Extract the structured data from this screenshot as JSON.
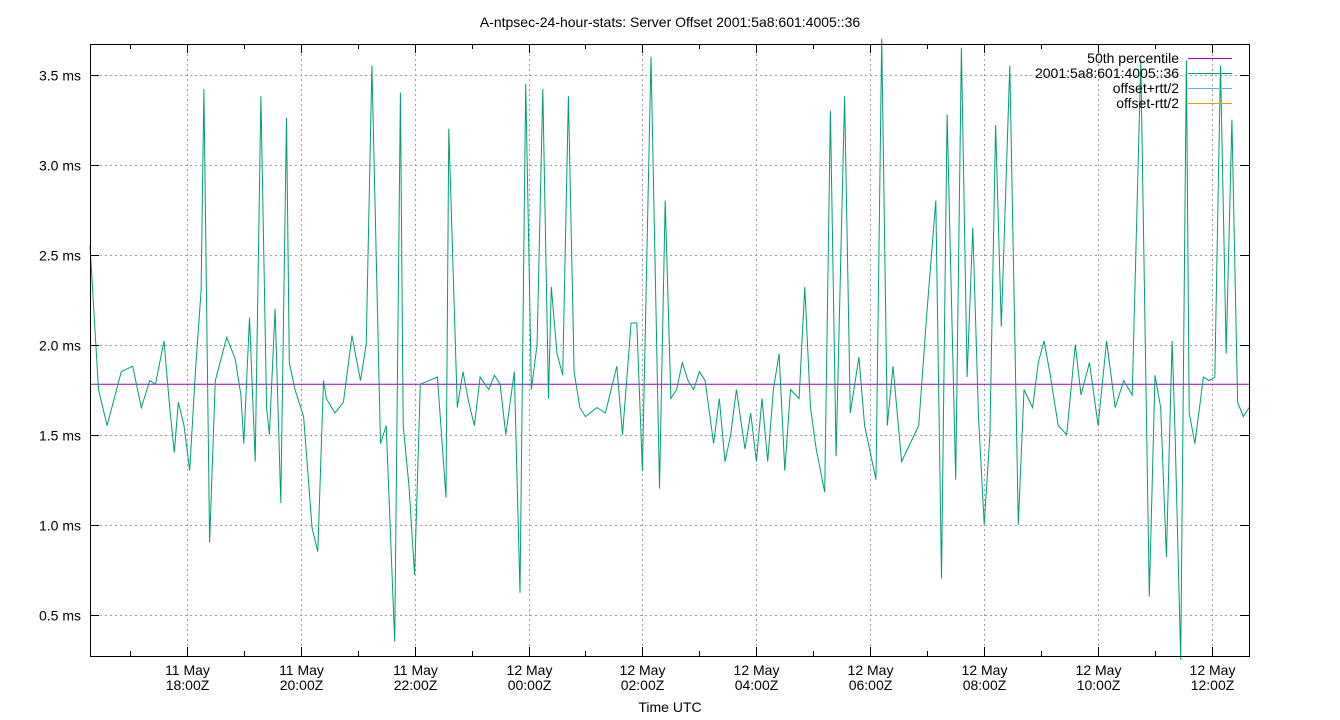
{
  "chart_data": {
    "type": "line",
    "title": "A-ntpsec-24-hour-stats: Server Offset 2001:5a8:601:4005::36",
    "xlabel": "Time UTC",
    "ylabel": "",
    "x_range_hours": [
      -7.7,
      12.65
    ],
    "x_ticks": [
      {
        "h": -6,
        "l1": "11 May",
        "l2": "18:00Z"
      },
      {
        "h": -4,
        "l1": "11 May",
        "l2": "20:00Z"
      },
      {
        "h": -2,
        "l1": "11 May",
        "l2": "22:00Z"
      },
      {
        "h": 0,
        "l1": "12 May",
        "l2": "00:00Z"
      },
      {
        "h": 2,
        "l1": "12 May",
        "l2": "02:00Z"
      },
      {
        "h": 4,
        "l1": "12 May",
        "l2": "04:00Z"
      },
      {
        "h": 6,
        "l1": "12 May",
        "l2": "06:00Z"
      },
      {
        "h": 8,
        "l1": "12 May",
        "l2": "08:00Z"
      },
      {
        "h": 10,
        "l1": "12 May",
        "l2": "10:00Z"
      },
      {
        "h": 12,
        "l1": "12 May",
        "l2": "12:00Z"
      }
    ],
    "y_range": [
      0.27,
      3.67
    ],
    "y_ticks": [
      {
        "v": 0.5,
        "label": "0.5 ms"
      },
      {
        "v": 1.0,
        "label": "1.0 ms"
      },
      {
        "v": 1.5,
        "label": "1.5 ms"
      },
      {
        "v": 2.0,
        "label": "2.0 ms"
      },
      {
        "v": 2.5,
        "label": "2.5 ms"
      },
      {
        "v": 3.0,
        "label": "3.0 ms"
      },
      {
        "v": 3.5,
        "label": "3.5 ms"
      }
    ],
    "grid": true,
    "legend_position": "top-right",
    "series": [
      {
        "name": "50th percentile",
        "color": "#9400d3",
        "x": [
          -7.7,
          12.65
        ],
        "y": [
          1.78,
          1.78
        ]
      },
      {
        "name": "2001:5a8:601:4005::36",
        "color": "#009e73",
        "x": [
          -7.7,
          -7.55,
          -7.4,
          -7.15,
          -6.95,
          -6.8,
          -6.65,
          -6.55,
          -6.4,
          -6.3,
          -6.22,
          -6.15,
          -6.05,
          -5.95,
          -5.85,
          -5.75,
          -5.7,
          -5.6,
          -5.5,
          -5.3,
          -5.15,
          -5.05,
          -5.0,
          -4.9,
          -4.8,
          -4.7,
          -4.6,
          -4.55,
          -4.45,
          -4.35,
          -4.25,
          -4.2,
          -4.1,
          -3.95,
          -3.8,
          -3.7,
          -3.6,
          -3.55,
          -3.4,
          -3.25,
          -3.1,
          -2.95,
          -2.85,
          -2.75,
          -2.6,
          -2.5,
          -2.35,
          -2.25,
          -2.2,
          -2.1,
          -2.0,
          -1.9,
          -1.75,
          -1.6,
          -1.45,
          -1.4,
          -1.25,
          -1.15,
          -1.05,
          -0.95,
          -0.85,
          -0.7,
          -0.6,
          -0.5,
          -0.4,
          -0.25,
          -0.15,
          -0.05,
          0.05,
          0.15,
          0.25,
          0.35,
          0.4,
          0.5,
          0.6,
          0.7,
          0.8,
          0.9,
          1.0,
          1.2,
          1.35,
          1.45,
          1.55,
          1.65,
          1.8,
          1.9,
          2.0,
          2.15,
          2.3,
          2.4,
          2.5,
          2.6,
          2.7,
          2.8,
          2.9,
          3.0,
          3.1,
          3.25,
          3.35,
          3.45,
          3.55,
          3.65,
          3.8,
          3.9,
          4.0,
          4.1,
          4.2,
          4.3,
          4.4,
          4.5,
          4.6,
          4.75,
          4.85,
          4.95,
          5.05,
          5.2,
          5.3,
          5.4,
          5.55,
          5.65,
          5.8,
          5.9,
          6.0,
          6.1,
          6.2,
          6.3,
          6.4,
          6.55,
          6.7,
          6.85,
          7.0,
          7.15,
          7.25,
          7.35,
          7.5,
          7.6,
          7.7,
          7.8,
          7.9,
          8.0,
          8.1,
          8.2,
          8.3,
          8.45,
          8.6,
          8.7,
          8.85,
          8.95,
          9.05,
          9.15,
          9.3,
          9.45,
          9.6,
          9.7,
          9.85,
          10.0,
          10.15,
          10.3,
          10.45,
          10.6,
          10.75,
          10.9,
          11.0,
          11.1,
          11.2,
          11.3,
          11.35,
          11.45,
          11.55,
          11.6,
          11.7,
          11.85,
          11.95,
          12.05,
          12.15,
          12.25,
          12.35,
          12.45,
          12.55,
          12.65
        ],
        "y": [
          2.55,
          1.75,
          1.55,
          1.85,
          1.88,
          1.65,
          1.8,
          1.78,
          2.02,
          1.65,
          1.4,
          1.68,
          1.55,
          1.3,
          1.85,
          2.3,
          3.42,
          0.9,
          1.8,
          2.04,
          1.92,
          1.72,
          1.45,
          2.15,
          1.35,
          3.38,
          1.65,
          1.5,
          2.2,
          1.12,
          3.26,
          1.9,
          1.75,
          1.6,
          0.98,
          0.85,
          1.8,
          1.7,
          1.62,
          1.68,
          2.05,
          1.8,
          2.0,
          3.55,
          1.45,
          1.55,
          0.35,
          3.4,
          1.55,
          1.22,
          0.72,
          1.78,
          1.8,
          1.82,
          1.15,
          3.2,
          1.65,
          1.85,
          1.68,
          1.55,
          1.82,
          1.75,
          1.83,
          1.78,
          1.5,
          1.85,
          0.62,
          3.45,
          1.75,
          2.0,
          3.42,
          1.7,
          2.32,
          1.95,
          1.83,
          3.38,
          1.85,
          1.65,
          1.6,
          1.65,
          1.62,
          1.75,
          1.88,
          1.5,
          2.12,
          2.12,
          1.3,
          3.6,
          1.2,
          2.8,
          1.7,
          1.75,
          1.9,
          1.8,
          1.75,
          1.85,
          1.8,
          1.45,
          1.7,
          1.35,
          1.5,
          1.75,
          1.42,
          1.62,
          1.35,
          1.7,
          1.35,
          1.75,
          1.95,
          1.3,
          1.75,
          1.7,
          2.32,
          1.65,
          1.42,
          1.18,
          3.3,
          1.38,
          3.38,
          1.62,
          1.93,
          1.55,
          1.4,
          1.25,
          3.7,
          1.55,
          1.88,
          1.35,
          1.45,
          1.55,
          2.2,
          2.8,
          0.7,
          3.28,
          1.25,
          3.65,
          1.82,
          2.65,
          1.6,
          1.0,
          1.5,
          3.22,
          2.1,
          3.55,
          1.0,
          1.75,
          1.65,
          1.9,
          2.02,
          1.85,
          1.55,
          1.5,
          2.0,
          1.72,
          1.9,
          1.55,
          2.02,
          1.65,
          1.8,
          1.72,
          3.58,
          0.6,
          1.83,
          1.65,
          0.82,
          2.02,
          1.52,
          0.25,
          3.58,
          1.62,
          1.45,
          1.82,
          1.8,
          1.82,
          3.55,
          1.95,
          3.25,
          1.68,
          1.6,
          1.65
        ]
      },
      {
        "name": "offset+rtt/2",
        "color": "#56b4e9",
        "x": [],
        "y": []
      },
      {
        "name": "offset-rtt/2",
        "color": "#e69f00",
        "x": [],
        "y": []
      }
    ]
  }
}
